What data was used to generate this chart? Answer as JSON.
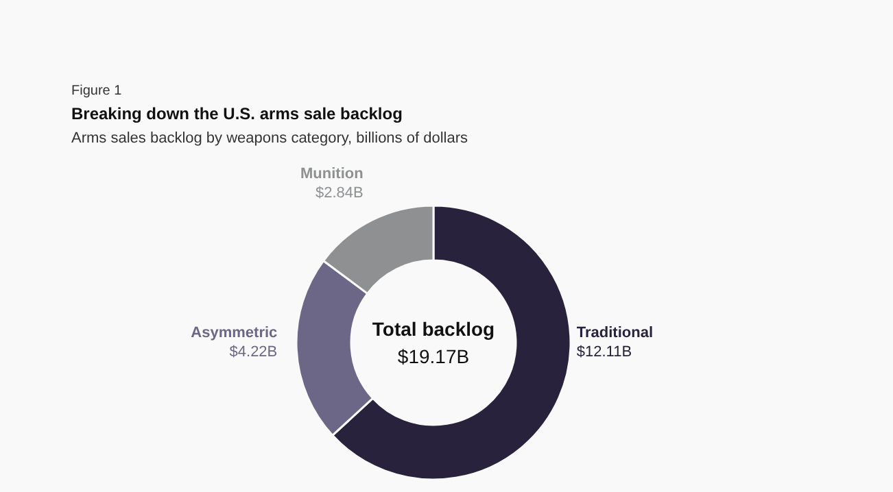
{
  "chart_data": {
    "type": "donut",
    "title": "Breaking down the U.S. arms sale backlog",
    "subtitle": "Arms sales backlog by weapons category, billions of dollars",
    "annotations": [
      "Figure 1",
      "Total backlog",
      "$19.17B"
    ],
    "categories": [
      "Traditional",
      "Asymmetric",
      "Munition"
    ],
    "values": [
      12.11,
      4.22,
      2.84
    ],
    "value_labels": [
      "$12.11B",
      "$4.22B",
      "$2.84B"
    ],
    "colors": [
      "#28223c",
      "#6d6787",
      "#8e9092"
    ]
  }
}
